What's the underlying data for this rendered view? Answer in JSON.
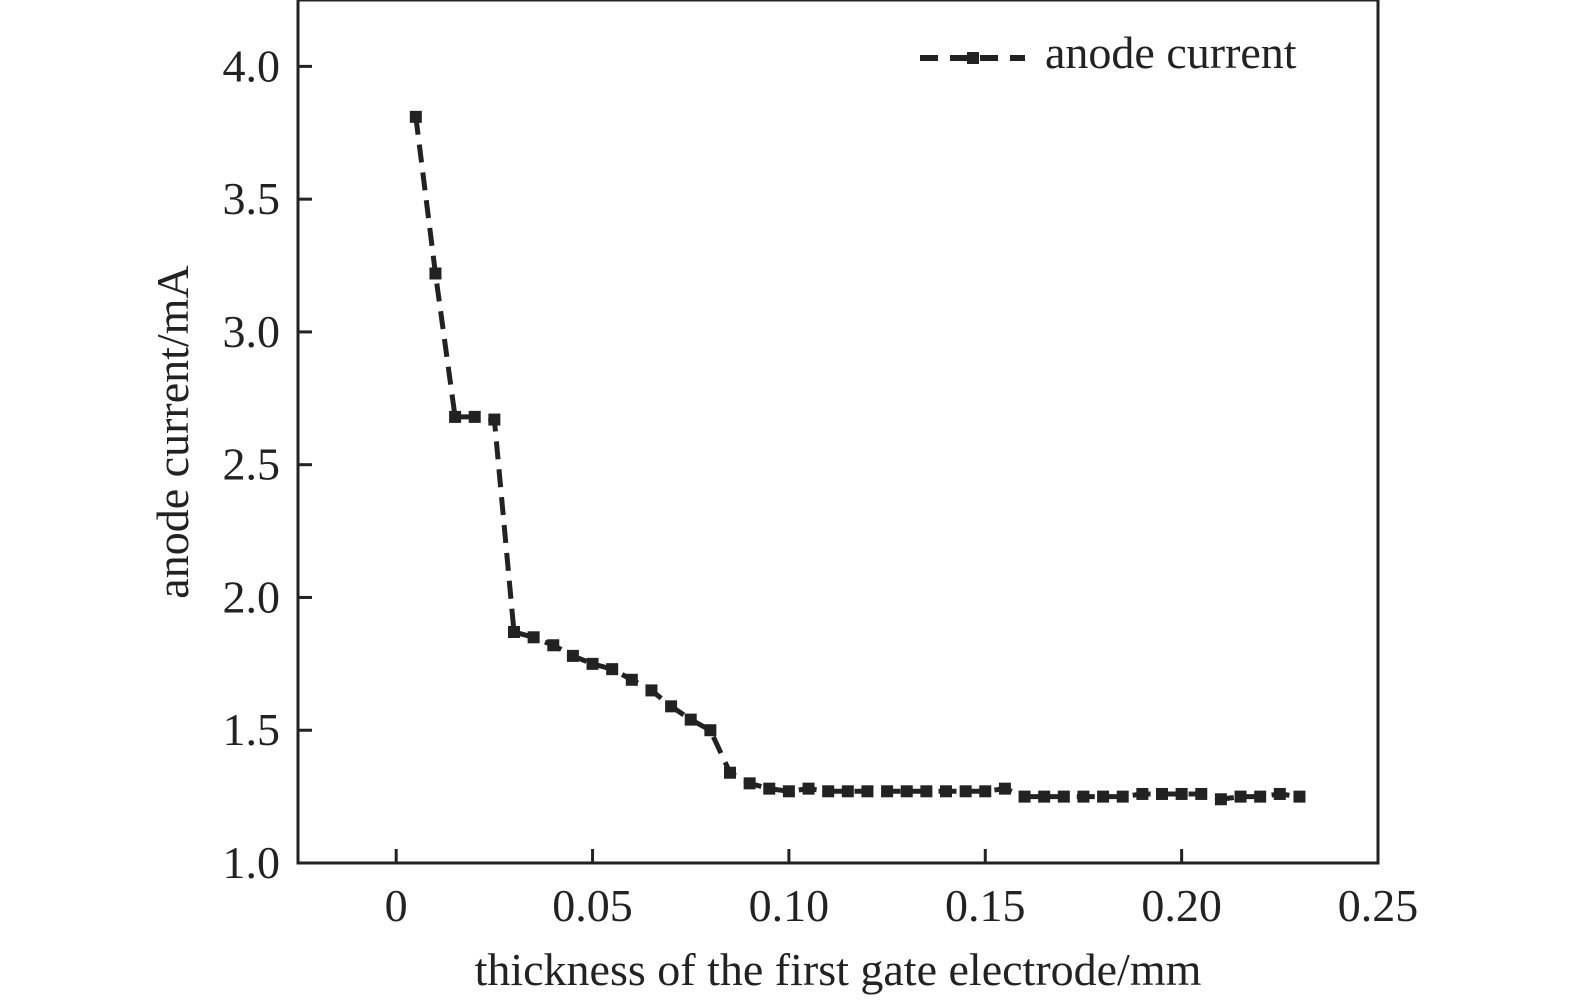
{
  "chart_data": {
    "type": "line",
    "title": "",
    "xlabel": "thickness of the first gate electrode/mm",
    "ylabel": "anode current/mA",
    "xlim": [
      -0.025,
      0.25
    ],
    "ylim": [
      1.0,
      4.25
    ],
    "x_ticks": [
      0,
      0.05,
      0.1,
      0.15,
      0.2,
      0.25
    ],
    "x_tick_labels": [
      "0",
      "0.05",
      "0.10",
      "0.15",
      "0.20",
      "0.25"
    ],
    "y_ticks": [
      1.0,
      1.5,
      2.0,
      2.5,
      3.0,
      3.5,
      4.0
    ],
    "y_tick_labels": [
      "1.0",
      "1.5",
      "2.0",
      "2.5",
      "3.0",
      "3.5",
      "4.0"
    ],
    "grid": false,
    "legend_position": "top-right",
    "line_style": "dashed",
    "marker": "square",
    "color": "#222222",
    "series": [
      {
        "name": "anode current",
        "x": [
          0.005,
          0.01,
          0.015,
          0.02,
          0.025,
          0.03,
          0.035,
          0.04,
          0.045,
          0.05,
          0.055,
          0.06,
          0.065,
          0.07,
          0.075,
          0.08,
          0.085,
          0.09,
          0.095,
          0.1,
          0.105,
          0.11,
          0.115,
          0.12,
          0.125,
          0.13,
          0.135,
          0.14,
          0.145,
          0.15,
          0.155,
          0.16,
          0.165,
          0.17,
          0.175,
          0.18,
          0.185,
          0.19,
          0.195,
          0.2,
          0.205,
          0.21,
          0.215,
          0.22,
          0.225,
          0.23
        ],
        "y": [
          3.81,
          3.22,
          2.68,
          2.68,
          2.67,
          1.87,
          1.85,
          1.82,
          1.78,
          1.75,
          1.73,
          1.69,
          1.65,
          1.59,
          1.54,
          1.5,
          1.34,
          1.3,
          1.28,
          1.27,
          1.28,
          1.27,
          1.27,
          1.27,
          1.27,
          1.27,
          1.27,
          1.27,
          1.27,
          1.27,
          1.28,
          1.25,
          1.25,
          1.25,
          1.25,
          1.25,
          1.25,
          1.26,
          1.26,
          1.26,
          1.26,
          1.24,
          1.25,
          1.25,
          1.26,
          1.25
        ]
      }
    ]
  }
}
